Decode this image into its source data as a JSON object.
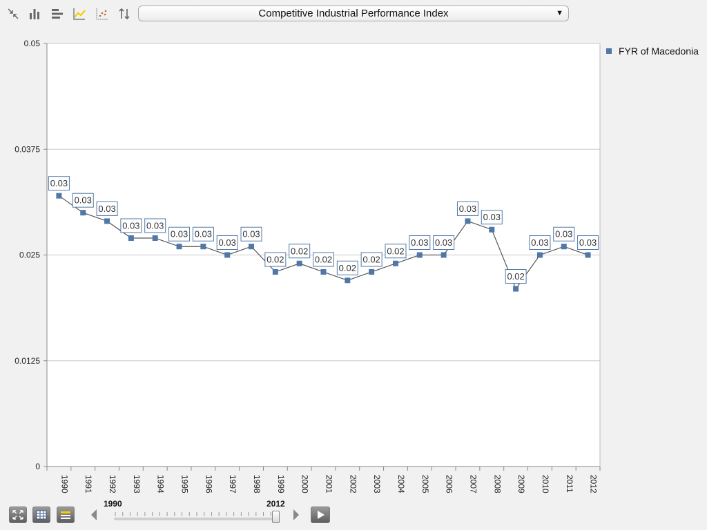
{
  "toolbar": {
    "indicator_label": "Competitive Industrial Performance Index",
    "icons": [
      "collapse-icon",
      "bar-chart-icon",
      "horizontal-bar-icon",
      "line-chart-icon",
      "scatter-plot-icon",
      "sort-icon"
    ],
    "active_icon": "line-chart-icon",
    "active_color": "#f0d000"
  },
  "legend": {
    "entries": [
      "FYR of Macedonia"
    ]
  },
  "colors": {
    "series": "#4f78a8",
    "line": "#555555",
    "grid": "#c8c8c8",
    "label_border": "#4f78a8"
  },
  "timeline": {
    "start_year": "1990",
    "end_year": "2012"
  },
  "bottom": {
    "icons": [
      "fullscreen-icon",
      "table-view-icon",
      "legend-toggle-icon",
      "play-icon"
    ]
  },
  "chart_data": {
    "type": "line",
    "title": "",
    "xlabel": "",
    "ylabel": "",
    "ylim": [
      0,
      0.05
    ],
    "yticks": [
      "0",
      "0.0125",
      "0.025",
      "0.0375",
      "0.05"
    ],
    "grid": true,
    "legend_position": "right",
    "categories": [
      "1990",
      "1991",
      "1992",
      "1993",
      "1994",
      "1995",
      "1996",
      "1997",
      "1998",
      "1999",
      "2000",
      "2001",
      "2002",
      "2003",
      "2004",
      "2005",
      "2006",
      "2007",
      "2008",
      "2009",
      "2010",
      "2011",
      "2012"
    ],
    "series": [
      {
        "name": "FYR of Macedonia",
        "values": [
          0.032,
          0.03,
          0.029,
          0.027,
          0.027,
          0.026,
          0.026,
          0.025,
          0.026,
          0.023,
          0.024,
          0.023,
          0.022,
          0.023,
          0.024,
          0.025,
          0.025,
          0.029,
          0.028,
          0.021,
          0.025,
          0.026,
          0.025
        ],
        "labels": [
          "0.03",
          "0.03",
          "0.03",
          "0.03",
          "0.03",
          "0.03",
          "0.03",
          "0.03",
          "0.03",
          "0.02",
          "0.02",
          "0.02",
          "0.02",
          "0.02",
          "0.02",
          "0.03",
          "0.03",
          "0.03",
          "0.03",
          "0.02",
          "0.03",
          "0.03",
          "0.03"
        ]
      }
    ]
  }
}
